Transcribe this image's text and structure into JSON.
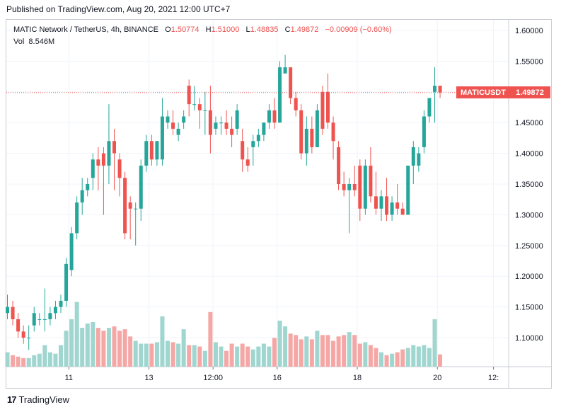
{
  "header": {
    "published": "Published on TradingView.com, Aug 20, 2021 12:00 UTC+7"
  },
  "legend": {
    "symbol": "MATIC Network / TetherUS, 4h, BINANCE",
    "o_label": "O",
    "o_value": "1.50774",
    "h_label": "H",
    "h_value": "1.51000",
    "l_label": "L",
    "l_value": "1.48835",
    "c_label": "C",
    "c_value": "1.49872",
    "change": "−0.00909 (−0.60%)",
    "vol_label": "Vol",
    "vol_value": "8.546M"
  },
  "price_tag": {
    "symbol": "MATICUSDT",
    "value": "1.49872"
  },
  "footer": {
    "brand": "TradingView",
    "logo": "17"
  },
  "colors": {
    "up": "#26a69a",
    "down": "#ef5350",
    "up_vol": "#9fd6cf",
    "down_vol": "#f4a7a5",
    "grid": "#f0f3fa"
  },
  "chart_data": {
    "type": "candlestick",
    "title": "MATIC Network / TetherUS, 4h, BINANCE",
    "ylim": [
      1.06,
      1.62
    ],
    "y_ticks": [
      "1.60000",
      "1.55000",
      "1.50000",
      "1.45000",
      "1.40000",
      "1.35000",
      "1.30000",
      "1.25000",
      "1.20000",
      "1.15000",
      "1.10000"
    ],
    "y_tick_values": [
      1.6,
      1.55,
      1.5,
      1.45,
      1.4,
      1.35,
      1.3,
      1.25,
      1.2,
      1.15,
      1.1
    ],
    "x_ticks": [
      {
        "label": "11",
        "index": 11.5
      },
      {
        "label": "13",
        "index": 26.5
      },
      {
        "label": "12:00",
        "index": 38.5
      },
      {
        "label": "16",
        "index": 50.5
      },
      {
        "label": "18",
        "index": 65.5
      },
      {
        "label": "20",
        "index": 80.5
      },
      {
        "label": "12:",
        "index": 91
      }
    ],
    "last_price": 1.49872,
    "volume_max_m": 60,
    "candles": [
      {
        "o": 1.14,
        "h": 1.17,
        "l": 1.13,
        "c": 1.15,
        "v": 10
      },
      {
        "o": 1.15,
        "h": 1.16,
        "l": 1.12,
        "c": 1.13,
        "v": 8
      },
      {
        "o": 1.13,
        "h": 1.14,
        "l": 1.1,
        "c": 1.11,
        "v": 7
      },
      {
        "o": 1.11,
        "h": 1.12,
        "l": 1.09,
        "c": 1.1,
        "v": 6
      },
      {
        "o": 1.1,
        "h": 1.12,
        "l": 1.08,
        "c": 1.1,
        "v": 6
      },
      {
        "o": 1.12,
        "h": 1.15,
        "l": 1.11,
        "c": 1.14,
        "v": 8
      },
      {
        "o": 1.13,
        "h": 1.14,
        "l": 1.12,
        "c": 1.13,
        "v": 9
      },
      {
        "o": 1.13,
        "h": 1.18,
        "l": 1.11,
        "c": 1.13,
        "v": 15
      },
      {
        "o": 1.13,
        "h": 1.15,
        "l": 1.12,
        "c": 1.14,
        "v": 10
      },
      {
        "o": 1.14,
        "h": 1.16,
        "l": 1.13,
        "c": 1.15,
        "v": 9
      },
      {
        "o": 1.15,
        "h": 1.17,
        "l": 1.14,
        "c": 1.16,
        "v": 15
      },
      {
        "o": 1.16,
        "h": 1.23,
        "l": 1.15,
        "c": 1.22,
        "v": 25
      },
      {
        "o": 1.21,
        "h": 1.28,
        "l": 1.2,
        "c": 1.27,
        "v": 33
      },
      {
        "o": 1.27,
        "h": 1.33,
        "l": 1.26,
        "c": 1.32,
        "v": 45
      },
      {
        "o": 1.32,
        "h": 1.36,
        "l": 1.3,
        "c": 1.34,
        "v": 27
      },
      {
        "o": 1.34,
        "h": 1.36,
        "l": 1.33,
        "c": 1.35,
        "v": 30
      },
      {
        "o": 1.36,
        "h": 1.4,
        "l": 1.34,
        "c": 1.39,
        "v": 31
      },
      {
        "o": 1.39,
        "h": 1.41,
        "l": 1.34,
        "c": 1.38,
        "v": 27
      },
      {
        "o": 1.4,
        "h": 1.41,
        "l": 1.3,
        "c": 1.38,
        "v": 25
      },
      {
        "o": 1.38,
        "h": 1.48,
        "l": 1.35,
        "c": 1.42,
        "v": 27
      },
      {
        "o": 1.42,
        "h": 1.44,
        "l": 1.34,
        "c": 1.4,
        "v": 28
      },
      {
        "o": 1.39,
        "h": 1.4,
        "l": 1.33,
        "c": 1.36,
        "v": 25
      },
      {
        "o": 1.36,
        "h": 1.37,
        "l": 1.26,
        "c": 1.27,
        "v": 26
      },
      {
        "o": 1.32,
        "h": 1.33,
        "l": 1.26,
        "c": 1.31,
        "v": 21
      },
      {
        "o": 1.31,
        "h": 1.32,
        "l": 1.25,
        "c": 1.31,
        "v": 18
      },
      {
        "o": 1.31,
        "h": 1.39,
        "l": 1.29,
        "c": 1.38,
        "v": 16
      },
      {
        "o": 1.38,
        "h": 1.43,
        "l": 1.37,
        "c": 1.42,
        "v": 16
      },
      {
        "o": 1.42,
        "h": 1.43,
        "l": 1.38,
        "c": 1.39,
        "v": 16
      },
      {
        "o": 1.39,
        "h": 1.42,
        "l": 1.38,
        "c": 1.42,
        "v": 17
      },
      {
        "o": 1.39,
        "h": 1.49,
        "l": 1.38,
        "c": 1.46,
        "v": 35
      },
      {
        "o": 1.45,
        "h": 1.47,
        "l": 1.44,
        "c": 1.46,
        "v": 18
      },
      {
        "o": 1.45,
        "h": 1.47,
        "l": 1.43,
        "c": 1.44,
        "v": 17
      },
      {
        "o": 1.43,
        "h": 1.45,
        "l": 1.42,
        "c": 1.44,
        "v": 16
      },
      {
        "o": 1.45,
        "h": 1.47,
        "l": 1.44,
        "c": 1.46,
        "v": 26
      },
      {
        "o": 1.51,
        "h": 1.52,
        "l": 1.46,
        "c": 1.48,
        "v": 15
      },
      {
        "o": 1.48,
        "h": 1.51,
        "l": 1.47,
        "c": 1.48,
        "v": 15
      },
      {
        "o": 1.48,
        "h": 1.49,
        "l": 1.44,
        "c": 1.47,
        "v": 14
      },
      {
        "o": 1.47,
        "h": 1.5,
        "l": 1.43,
        "c": 1.47,
        "v": 11
      },
      {
        "o": 1.47,
        "h": 1.51,
        "l": 1.4,
        "c": 1.43,
        "v": 38
      },
      {
        "o": 1.44,
        "h": 1.46,
        "l": 1.43,
        "c": 1.45,
        "v": 17
      },
      {
        "o": 1.45,
        "h": 1.46,
        "l": 1.43,
        "c": 1.45,
        "v": 14
      },
      {
        "o": 1.45,
        "h": 1.47,
        "l": 1.43,
        "c": 1.44,
        "v": 11
      },
      {
        "o": 1.44,
        "h": 1.46,
        "l": 1.41,
        "c": 1.43,
        "v": 16
      },
      {
        "o": 1.44,
        "h": 1.48,
        "l": 1.43,
        "c": 1.47,
        "v": 14
      },
      {
        "o": 1.42,
        "h": 1.44,
        "l": 1.37,
        "c": 1.39,
        "v": 16
      },
      {
        "o": 1.39,
        "h": 1.41,
        "l": 1.37,
        "c": 1.38,
        "v": 14
      },
      {
        "o": 1.41,
        "h": 1.43,
        "l": 1.38,
        "c": 1.42,
        "v": 12
      },
      {
        "o": 1.42,
        "h": 1.44,
        "l": 1.41,
        "c": 1.43,
        "v": 14
      },
      {
        "o": 1.43,
        "h": 1.45,
        "l": 1.42,
        "c": 1.45,
        "v": 16
      },
      {
        "o": 1.45,
        "h": 1.48,
        "l": 1.44,
        "c": 1.47,
        "v": 14
      },
      {
        "o": 1.47,
        "h": 1.49,
        "l": 1.44,
        "c": 1.45,
        "v": 20
      },
      {
        "o": 1.45,
        "h": 1.55,
        "l": 1.45,
        "c": 1.54,
        "v": 32
      },
      {
        "o": 1.53,
        "h": 1.56,
        "l": 1.53,
        "c": 1.54,
        "v": 28
      },
      {
        "o": 1.54,
        "h": 1.54,
        "l": 1.48,
        "c": 1.49,
        "v": 23
      },
      {
        "o": 1.49,
        "h": 1.5,
        "l": 1.46,
        "c": 1.47,
        "v": 22
      },
      {
        "o": 1.47,
        "h": 1.48,
        "l": 1.39,
        "c": 1.4,
        "v": 19
      },
      {
        "o": 1.4,
        "h": 1.46,
        "l": 1.38,
        "c": 1.44,
        "v": 21
      },
      {
        "o": 1.44,
        "h": 1.46,
        "l": 1.4,
        "c": 1.41,
        "v": 19
      },
      {
        "o": 1.41,
        "h": 1.48,
        "l": 1.41,
        "c": 1.47,
        "v": 25
      },
      {
        "o": 1.5,
        "h": 1.51,
        "l": 1.43,
        "c": 1.44,
        "v": 22
      },
      {
        "o": 1.5,
        "h": 1.53,
        "l": 1.44,
        "c": 1.45,
        "v": 22
      },
      {
        "o": 1.45,
        "h": 1.46,
        "l": 1.39,
        "c": 1.42,
        "v": 18
      },
      {
        "o": 1.41,
        "h": 1.42,
        "l": 1.34,
        "c": 1.35,
        "v": 21
      },
      {
        "o": 1.35,
        "h": 1.37,
        "l": 1.33,
        "c": 1.34,
        "v": 22
      },
      {
        "o": 1.34,
        "h": 1.36,
        "l": 1.27,
        "c": 1.35,
        "v": 24
      },
      {
        "o": 1.35,
        "h": 1.38,
        "l": 1.33,
        "c": 1.34,
        "v": 22
      },
      {
        "o": 1.38,
        "h": 1.39,
        "l": 1.29,
        "c": 1.31,
        "v": 16
      },
      {
        "o": 1.31,
        "h": 1.39,
        "l": 1.3,
        "c": 1.38,
        "v": 17
      },
      {
        "o": 1.38,
        "h": 1.41,
        "l": 1.32,
        "c": 1.33,
        "v": 15
      },
      {
        "o": 1.33,
        "h": 1.37,
        "l": 1.3,
        "c": 1.31,
        "v": 13
      },
      {
        "o": 1.31,
        "h": 1.34,
        "l": 1.29,
        "c": 1.33,
        "v": 10
      },
      {
        "o": 1.33,
        "h": 1.36,
        "l": 1.29,
        "c": 1.3,
        "v": 8
      },
      {
        "o": 1.3,
        "h": 1.33,
        "l": 1.29,
        "c": 1.32,
        "v": 9
      },
      {
        "o": 1.32,
        "h": 1.35,
        "l": 1.3,
        "c": 1.31,
        "v": 10
      },
      {
        "o": 1.31,
        "h": 1.32,
        "l": 1.3,
        "c": 1.3,
        "v": 12
      },
      {
        "o": 1.3,
        "h": 1.38,
        "l": 1.3,
        "c": 1.38,
        "v": 13
      },
      {
        "o": 1.38,
        "h": 1.42,
        "l": 1.35,
        "c": 1.41,
        "v": 15
      },
      {
        "o": 1.38,
        "h": 1.41,
        "l": 1.37,
        "c": 1.4,
        "v": 14
      },
      {
        "o": 1.41,
        "h": 1.47,
        "l": 1.4,
        "c": 1.46,
        "v": 15
      },
      {
        "o": 1.46,
        "h": 1.49,
        "l": 1.45,
        "c": 1.49,
        "v": 13
      },
      {
        "o": 1.5,
        "h": 1.54,
        "l": 1.45,
        "c": 1.51,
        "v": 33
      },
      {
        "o": 1.51,
        "h": 1.51,
        "l": 1.49,
        "c": 1.499,
        "v": 8.546
      }
    ]
  }
}
